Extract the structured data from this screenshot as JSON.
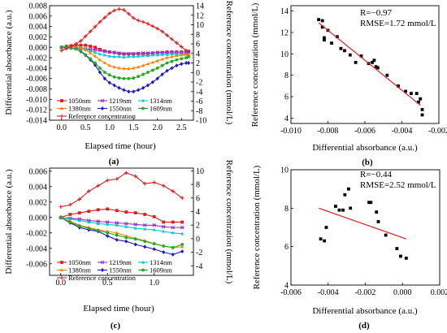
{
  "chart_data": [
    {
      "id": "a",
      "type": "line",
      "sublabel": "(a)",
      "xlabel": "Elapsed time (hour)",
      "ylabel": "Differential absorbance (a.u.)",
      "y2label": "Reference concentration (mmol/L)",
      "xlim": [
        -0.25,
        2.75
      ],
      "ylim": [
        -0.014,
        0.008
      ],
      "y2lim": [
        -10,
        14
      ],
      "xticks": [
        0.0,
        0.5,
        1.0,
        1.5,
        2.0,
        2.5
      ],
      "xticklabels": [
        "0.0",
        "0.5",
        "1.0",
        "1.5",
        "2.0",
        "2.5"
      ],
      "yticks": [
        0.008,
        0.006,
        0.004,
        0.002,
        0.0,
        -0.002,
        -0.004,
        -0.006,
        -0.008,
        -0.01,
        -0.012,
        -0.014
      ],
      "yticklabels": [
        "0.008",
        "0.006",
        "0.004",
        "0.002",
        "0.000",
        "-0.002",
        "-0.004",
        "-0.006",
        "-0.008",
        "-0.010",
        "-0.012",
        "-0.014"
      ],
      "y2ticks": [
        14,
        12,
        10,
        8,
        6,
        4,
        2,
        0,
        -2,
        -4,
        -6,
        -8,
        -10
      ],
      "y2ticklabels": [
        "14",
        "12",
        "10",
        "8",
        "6",
        "4",
        "2",
        "0",
        "-2",
        "-4",
        "-6",
        "-8",
        "-10"
      ],
      "legend": {
        "placement": "bottom-left, inside"
      },
      "x": [
        0.0,
        0.1,
        0.2,
        0.3,
        0.4,
        0.5,
        0.6,
        0.7,
        0.8,
        0.9,
        1.0,
        1.1,
        1.2,
        1.3,
        1.4,
        1.5,
        1.6,
        1.7,
        1.8,
        1.9,
        2.0,
        2.1,
        2.2,
        2.3,
        2.4,
        2.5,
        2.6,
        2.65
      ],
      "series": [
        {
          "name": "1050nm",
          "color": "#e41a1c",
          "marker": "square",
          "axis": "left",
          "values": [
            0.0,
            0.0002,
            0.0003,
            0.0004,
            0.0004,
            0.0004,
            0.0002,
            0.0,
            -0.0004,
            -0.0007,
            -0.0009,
            -0.001,
            -0.0012,
            -0.0013,
            -0.0013,
            -0.0013,
            -0.0012,
            -0.0012,
            -0.0012,
            -0.0011,
            -0.001,
            -0.001,
            -0.0009,
            -0.0009,
            -0.0009,
            -0.0009,
            -0.0009,
            -0.0008
          ]
        },
        {
          "name": "1219nm",
          "color": "#9933cc",
          "marker": "star",
          "axis": "left",
          "values": [
            0.0,
            -0.0001,
            -0.0001,
            -0.0002,
            -0.0002,
            -0.0003,
            -0.0004,
            -0.0005,
            -0.0006,
            -0.0008,
            -0.0009,
            -0.001,
            -0.0011,
            -0.0012,
            -0.0012,
            -0.0012,
            -0.0012,
            -0.0011,
            -0.0011,
            -0.0011,
            -0.001,
            -0.001,
            -0.001,
            -0.0009,
            -0.0009,
            -0.0009,
            -0.0009,
            -0.0008
          ]
        },
        {
          "name": "1314nm",
          "color": "#00cccc",
          "marker": "triangle",
          "axis": "left",
          "values": [
            0.0,
            0.0002,
            0.0002,
            0.0001,
            0.0,
            -0.0003,
            -0.0007,
            -0.001,
            -0.0013,
            -0.0015,
            -0.0017,
            -0.0018,
            -0.0018,
            -0.0019,
            -0.0018,
            -0.0018,
            -0.0017,
            -0.0016,
            -0.0016,
            -0.0015,
            -0.0015,
            -0.0014,
            -0.0014,
            -0.0013,
            -0.0013,
            -0.0013,
            -0.0013,
            -0.0012
          ]
        },
        {
          "name": "1380nm",
          "color": "#ff8000",
          "marker": "triangle",
          "axis": "left",
          "values": [
            0.0,
            0.0001,
            0.0002,
            0.0001,
            -0.0001,
            -0.0005,
            -0.0011,
            -0.0017,
            -0.0024,
            -0.003,
            -0.0035,
            -0.0038,
            -0.004,
            -0.0041,
            -0.0041,
            -0.004,
            -0.0038,
            -0.0035,
            -0.0032,
            -0.0029,
            -0.0026,
            -0.0023,
            -0.002,
            -0.0018,
            -0.0016,
            -0.0015,
            -0.0014,
            -0.0013
          ]
        },
        {
          "name": "1550nm",
          "color": "#1a1acc",
          "marker": "diamond",
          "axis": "left",
          "values": [
            0.0,
            0.0,
            -0.0001,
            -0.0003,
            -0.0008,
            -0.0015,
            -0.0024,
            -0.0034,
            -0.0048,
            -0.006,
            -0.0068,
            -0.0073,
            -0.0078,
            -0.0082,
            -0.0085,
            -0.0085,
            -0.0082,
            -0.0078,
            -0.0073,
            -0.0067,
            -0.006,
            -0.0052,
            -0.0045,
            -0.004,
            -0.0035,
            -0.0032,
            -0.003,
            -0.003
          ]
        },
        {
          "name": "1609nm",
          "color": "#22aa22",
          "marker": "circle",
          "axis": "left",
          "values": [
            0.0,
            0.0,
            -0.0001,
            -0.0003,
            -0.0007,
            -0.0014,
            -0.0022,
            -0.003,
            -0.004,
            -0.0048,
            -0.0053,
            -0.0057,
            -0.0059,
            -0.006,
            -0.006,
            -0.0059,
            -0.0056,
            -0.0052,
            -0.0048,
            -0.0044,
            -0.004,
            -0.0035,
            -0.003,
            -0.0027,
            -0.0024,
            -0.0022,
            -0.002,
            -0.0018
          ]
        },
        {
          "name": "Reference concentration",
          "color": "#e41a1c",
          "marker": "plus",
          "axis": "right",
          "values": [
            4.6,
            5.0,
            5.5,
            6.0,
            6.6,
            7.6,
            8.6,
            9.6,
            10.6,
            11.5,
            12.4,
            13.0,
            13.3,
            13.1,
            12.3,
            11.4,
            10.9,
            10.6,
            10.2,
            9.7,
            9.2,
            8.6,
            7.8,
            7.0,
            6.2,
            5.4,
            4.6,
            4.4
          ]
        }
      ]
    },
    {
      "id": "b",
      "type": "scatter",
      "sublabel": "(b)",
      "xlabel": "Differential absorbance (a.u.)",
      "ylabel": "Reference concentration (mmol/L)",
      "xlim": [
        -0.01,
        -0.002
      ],
      "ylim": [
        3.5,
        14.5
      ],
      "xticks": [
        -0.01,
        -0.008,
        -0.006,
        -0.004,
        -0.002
      ],
      "xticklabels": [
        "-0.010",
        "-0.008",
        "-0.006",
        "-0.004",
        "-0.002"
      ],
      "yticks": [
        4,
        6,
        8,
        10,
        12,
        14
      ],
      "yticklabels": [
        "4",
        "6",
        "8",
        "10",
        "12",
        "14"
      ],
      "annotations": [
        "R=−0.97",
        "RMSE=1.72 mmol/L"
      ],
      "fit": {
        "x": [
          -0.0085,
          -0.003
        ],
        "y": [
          12.9,
          5.2
        ],
        "color": "#e41a1c"
      },
      "points": [
        [
          -0.0085,
          13.2
        ],
        [
          -0.0083,
          13.1
        ],
        [
          -0.0083,
          12.5
        ],
        [
          -0.0082,
          11.5
        ],
        [
          -0.0082,
          11.3
        ],
        [
          -0.008,
          12.2
        ],
        [
          -0.0078,
          11.0
        ],
        [
          -0.0075,
          11.6
        ],
        [
          -0.0073,
          10.5
        ],
        [
          -0.0071,
          10.3
        ],
        [
          -0.0068,
          9.9
        ],
        [
          -0.0065,
          9.2
        ],
        [
          -0.0062,
          9.8
        ],
        [
          -0.0058,
          9.1
        ],
        [
          -0.0056,
          9.2
        ],
        [
          -0.0055,
          9.4
        ],
        [
          -0.0054,
          8.8
        ],
        [
          -0.0053,
          8.7
        ],
        [
          -0.0048,
          8.0
        ],
        [
          -0.0042,
          7.0
        ],
        [
          -0.0038,
          6.5
        ],
        [
          -0.0035,
          6.3
        ],
        [
          -0.0032,
          6.3
        ],
        [
          -0.0031,
          5.5
        ],
        [
          -0.003,
          5.8
        ],
        [
          -0.0029,
          4.8
        ],
        [
          -0.0029,
          4.3
        ]
      ]
    },
    {
      "id": "c",
      "type": "line",
      "sublabel": "(c)",
      "xlabel": "Elapsed time (hour)",
      "ylabel": "Differential absorbance (a.u.)",
      "y2label": "Reference concentration (mmol/L)",
      "xlim": [
        -0.12,
        1.42
      ],
      "ylim": [
        -0.0075,
        0.0064
      ],
      "y2lim": [
        -5.4,
        10.4
      ],
      "xticks": [
        0.0,
        0.5,
        1.0
      ],
      "xticklabels": [
        "0.0",
        "0.5",
        "1.0"
      ],
      "yticks": [
        0.006,
        0.004,
        0.002,
        0.0,
        -0.002,
        -0.004,
        -0.006
      ],
      "yticklabels": [
        "0.006",
        "0.004",
        "0.002",
        "0.000",
        "-0.002",
        "-0.004",
        "-0.006"
      ],
      "y2ticks": [
        10,
        8,
        6,
        4,
        2,
        0,
        -2,
        -4
      ],
      "y2ticklabels": [
        "10",
        "8",
        "6",
        "4",
        "2",
        "0",
        "-2",
        "-4"
      ],
      "legend": {
        "placement": "bottom-left, inside"
      },
      "x": [
        0.0,
        0.1,
        0.2,
        0.3,
        0.4,
        0.5,
        0.6,
        0.7,
        0.8,
        0.9,
        1.0,
        1.1,
        1.2,
        1.3
      ],
      "series": [
        {
          "name": "1050nm",
          "color": "#e41a1c",
          "marker": "square",
          "axis": "left",
          "values": [
            0.0,
            0.0004,
            0.0006,
            0.0008,
            0.001,
            0.0011,
            0.0009,
            0.0007,
            0.0006,
            0.0004,
            0.0001,
            -0.0006,
            -0.0006,
            -0.0006
          ]
        },
        {
          "name": "1219nm",
          "color": "#9933cc",
          "marker": "star",
          "axis": "left",
          "values": [
            0.0,
            -0.0001,
            -0.0002,
            -0.0004,
            -0.0005,
            -0.0006,
            -0.0007,
            -0.0008,
            -0.0009,
            -0.001,
            -0.001,
            -0.0012,
            -0.0013,
            -0.0013
          ]
        },
        {
          "name": "1314nm",
          "color": "#00cccc",
          "marker": "triangle",
          "axis": "left",
          "values": [
            0.0,
            -0.0002,
            -0.0004,
            -0.0006,
            -0.0008,
            -0.0009,
            -0.001,
            -0.0012,
            -0.0014,
            -0.0015,
            -0.0016,
            -0.0018,
            -0.002,
            -0.0021
          ]
        },
        {
          "name": "1380nm",
          "color": "#ff8000",
          "marker": "triangle",
          "axis": "left",
          "values": [
            0.0,
            -0.0005,
            -0.001,
            -0.0013,
            -0.0016,
            -0.0018,
            -0.002,
            -0.0024,
            -0.0027,
            -0.003,
            -0.0034,
            -0.0037,
            -0.0039,
            -0.0038
          ]
        },
        {
          "name": "1550nm",
          "color": "#1a1acc",
          "marker": "diamond",
          "axis": "left",
          "values": [
            0.0,
            -0.0007,
            -0.0013,
            -0.0016,
            -0.0018,
            -0.0024,
            -0.0029,
            -0.0031,
            -0.0035,
            -0.0038,
            -0.0041,
            -0.0045,
            -0.0048,
            -0.0044
          ]
        },
        {
          "name": "1609nm",
          "color": "#22aa22",
          "marker": "circle",
          "axis": "left",
          "values": [
            0.0,
            -0.0006,
            -0.0011,
            -0.0014,
            -0.0017,
            -0.002,
            -0.0023,
            -0.0026,
            -0.0028,
            -0.0031,
            -0.0034,
            -0.0037,
            -0.0039,
            -0.0035
          ]
        },
        {
          "name": "Reference concentration",
          "color": "#e41a1c",
          "marker": "plus",
          "axis": "right",
          "values": [
            4.7,
            5.0,
            5.8,
            7.0,
            7.8,
            8.6,
            8.8,
            9.7,
            9.2,
            8.1,
            8.3,
            7.8,
            7.0,
            6.0
          ]
        }
      ]
    },
    {
      "id": "d",
      "type": "scatter",
      "sublabel": "(d)",
      "xlabel": "Differential absorbance (a.u.)",
      "ylabel": "Reference concentration (mmol/L)",
      "xlim": [
        -0.006,
        0.002
      ],
      "ylim": [
        4,
        10
      ],
      "xticks": [
        -0.006,
        -0.004,
        -0.002,
        0.0,
        0.002
      ],
      "xticklabels": [
        "-0.006",
        "-0.004",
        "-0.002",
        "0.000",
        "0.002"
      ],
      "yticks": [
        4,
        6,
        8,
        10
      ],
      "yticklabels": [
        "4",
        "6",
        "8",
        "10"
      ],
      "annotations": [
        "R=−0.44",
        "RMSE=2.52 mmol/L"
      ],
      "fit": {
        "x": [
          -0.0045,
          0.0002
        ],
        "y": [
          8.0,
          6.4
        ],
        "color": "#e41a1c"
      },
      "points": [
        [
          -0.0044,
          6.4
        ],
        [
          -0.0042,
          6.3
        ],
        [
          -0.0041,
          7.0
        ],
        [
          -0.0036,
          8.1
        ],
        [
          -0.0034,
          7.9
        ],
        [
          -0.0032,
          7.9
        ],
        [
          -0.0031,
          8.7
        ],
        [
          -0.0029,
          9.0
        ],
        [
          -0.0028,
          8.0
        ],
        [
          -0.0018,
          8.3
        ],
        [
          -0.0017,
          8.3
        ],
        [
          -0.0014,
          7.8
        ],
        [
          -0.0013,
          7.3
        ],
        [
          -0.0009,
          6.6
        ],
        [
          -0.0003,
          5.9
        ],
        [
          -0.0001,
          5.5
        ],
        [
          0.0002,
          5.4
        ]
      ]
    }
  ]
}
